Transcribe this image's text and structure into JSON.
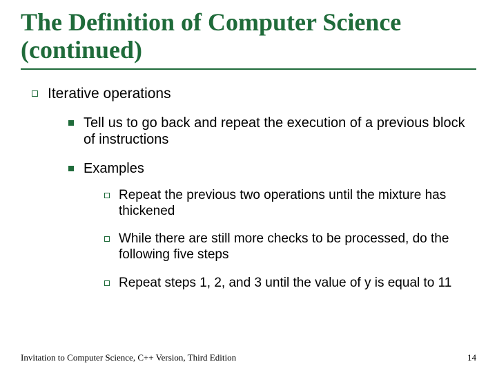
{
  "colors": {
    "accent": "#1f6b3a",
    "text": "#000000",
    "background": "#ffffff"
  },
  "title": "The Definition of Computer Science (continued)",
  "content": {
    "lvl1_item": "Iterative operations",
    "lvl2_items": [
      "Tell us to go back and repeat the execution of a previous block of instructions",
      "Examples"
    ],
    "lvl3_items": [
      "Repeat the previous two operations until the mixture has thickened",
      "While there are still more checks to be processed, do the following five steps",
      "Repeat steps 1, 2, and 3 until the value of y is equal to 11"
    ]
  },
  "footer": {
    "left": "Invitation to Computer Science, C++ Version, Third Edition",
    "page": "14"
  }
}
